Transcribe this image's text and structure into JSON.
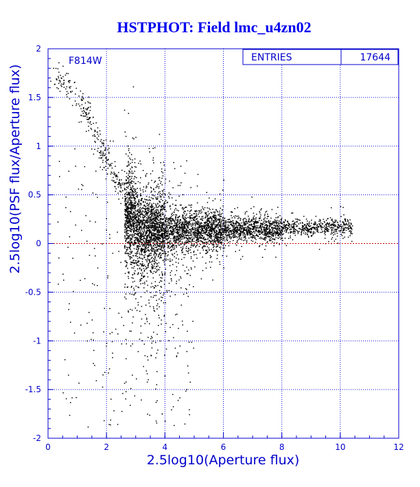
{
  "chart_data": {
    "type": "scatter",
    "title": "HSTPHOT: Field lmc_u4zn02",
    "xlabel": "2.5log10(Aperture flux)",
    "ylabel": "2.5log10(PSF flux/Aperture flux)",
    "filter_label": "F814W",
    "stats": {
      "label": "ENTRIES",
      "value": "17644"
    },
    "xlim": [
      0,
      12
    ],
    "ylim": [
      -2,
      2
    ],
    "x_ticks": [
      "0",
      "2",
      "4",
      "6",
      "8",
      "10",
      "12"
    ],
    "y_ticks": [
      "2",
      "1.5",
      "1",
      "0.5",
      "0",
      "-0.5",
      "-1",
      "-1.5",
      "-2"
    ],
    "grid": true,
    "reference_line": {
      "y": 0,
      "color": "#cc0000",
      "style": "dashed"
    },
    "colors": {
      "title": "#0000ee",
      "axes": "#0000cc",
      "points": "#000000",
      "stats_text": "#0000cc"
    },
    "entries": 17644,
    "density_profile": [
      {
        "x_range": [
          2.6,
          3.0
        ],
        "median_y": 0.3,
        "spread": 0.22
      },
      {
        "x_range": [
          3.0,
          4.0
        ],
        "median_y": 0.15,
        "spread": 0.18
      },
      {
        "x_range": [
          4.0,
          6.0
        ],
        "median_y": 0.14,
        "spread": 0.1
      },
      {
        "x_range": [
          6.0,
          8.0
        ],
        "median_y": 0.15,
        "spread": 0.06
      },
      {
        "x_range": [
          8.0,
          10.4
        ],
        "median_y": 0.17,
        "spread": 0.04
      }
    ],
    "bright_end_sequence": [
      {
        "x": 0.2,
        "y": 1.75
      },
      {
        "x": 0.6,
        "y": 1.65
      },
      {
        "x": 1.2,
        "y": 1.4
      },
      {
        "x": 1.4,
        "y": 1.3
      },
      {
        "x": 1.8,
        "y": 1.0
      },
      {
        "x": 2.0,
        "y": 0.9
      },
      {
        "x": 2.3,
        "y": 0.65
      },
      {
        "x": 2.6,
        "y": 0.55
      }
    ]
  }
}
